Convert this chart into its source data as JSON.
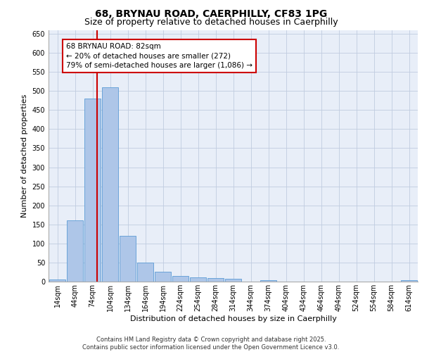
{
  "title": "68, BRYNAU ROAD, CAERPHILLY, CF83 1PG",
  "subtitle": "Size of property relative to detached houses in Caerphilly",
  "xlabel": "Distribution of detached houses by size in Caerphilly",
  "ylabel": "Number of detached properties",
  "categories": [
    "14sqm",
    "44sqm",
    "74sqm",
    "104sqm",
    "134sqm",
    "164sqm",
    "194sqm",
    "224sqm",
    "254sqm",
    "284sqm",
    "314sqm",
    "344sqm",
    "374sqm",
    "404sqm",
    "434sqm",
    "464sqm",
    "494sqm",
    "524sqm",
    "554sqm",
    "584sqm",
    "614sqm"
  ],
  "values": [
    5,
    160,
    480,
    510,
    120,
    50,
    25,
    14,
    12,
    10,
    7,
    0,
    4,
    0,
    0,
    0,
    0,
    0,
    0,
    0,
    3
  ],
  "bar_color": "#aec6e8",
  "bar_edge_color": "#5b9bd5",
  "ylim": [
    0,
    660
  ],
  "yticks": [
    0,
    50,
    100,
    150,
    200,
    250,
    300,
    350,
    400,
    450,
    500,
    550,
    600,
    650
  ],
  "vline_color": "#cc0000",
  "vline_pos": 2.27,
  "annotation_text": "68 BRYNAU ROAD: 82sqm\n← 20% of detached houses are smaller (272)\n79% of semi-detached houses are larger (1,086) →",
  "annotation_box_color": "#cc0000",
  "footer_text": "Contains HM Land Registry data © Crown copyright and database right 2025.\nContains public sector information licensed under the Open Government Licence v3.0.",
  "bg_color": "#e8eef8",
  "grid_color": "#c0cce0",
  "title_fontsize": 10,
  "subtitle_fontsize": 9,
  "tick_fontsize": 7,
  "ylabel_fontsize": 8,
  "xlabel_fontsize": 8,
  "footer_fontsize": 6,
  "ann_fontsize": 7.5
}
